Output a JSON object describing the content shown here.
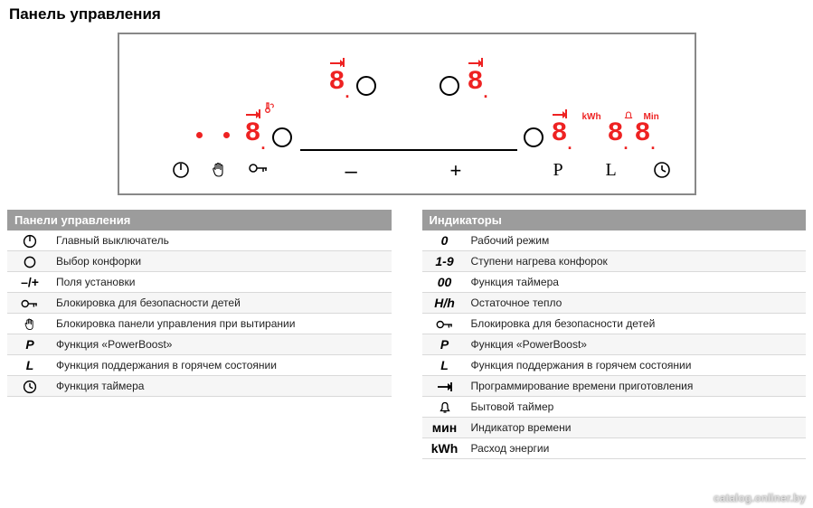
{
  "title": "Панель управления",
  "panel": {
    "seg_char": "8",
    "label_kwh": "kWh",
    "label_min": "Min",
    "colors": {
      "seg": "#e22222",
      "border": "#888888",
      "line": "#000000"
    },
    "icons": {
      "power": "⏻",
      "minus": "–",
      "plus": "+",
      "p": "P",
      "l": "L"
    }
  },
  "left_table": {
    "header": "Панели управления",
    "rows": [
      {
        "sym_type": "svg_power",
        "desc": "Главный выключатель"
      },
      {
        "sym_type": "svg_circle",
        "desc": "Выбор конфорки"
      },
      {
        "sym_text": "–/+",
        "plain": true,
        "desc": "Поля установки"
      },
      {
        "sym_type": "svg_key",
        "desc": "Блокировка для безопасности детей"
      },
      {
        "sym_type": "svg_hand",
        "desc": "Блокировка панели управления при вытирании"
      },
      {
        "sym_text": "P",
        "desc": "Функция «PowerBoost»"
      },
      {
        "sym_text": "L",
        "desc": "Функция поддержания в горячем состоянии"
      },
      {
        "sym_type": "svg_clock",
        "desc": "Функция таймера"
      }
    ]
  },
  "right_table": {
    "header": "Индикаторы",
    "rows": [
      {
        "sym_text": "0",
        "desc": "Рабочий режим"
      },
      {
        "sym_text": "1-9",
        "desc": "Ступени нагрева конфорок"
      },
      {
        "sym_text": "00",
        "desc": "Функция таймера"
      },
      {
        "sym_text": "H/h",
        "desc": "Остаточное тепло"
      },
      {
        "sym_type": "svg_key",
        "desc": "Блокировка для безопасности детей"
      },
      {
        "sym_text": "P",
        "desc": "Функция «PowerBoost»"
      },
      {
        "sym_text": "L",
        "desc": "Функция поддержания в горячем состоянии"
      },
      {
        "sym_type": "svg_cookarrow",
        "desc": "Программирование времени приготовления"
      },
      {
        "sym_type": "svg_bell",
        "desc": "Бытовой таймер"
      },
      {
        "sym_text": "мин",
        "plain": true,
        "desc": "Индикатор времени"
      },
      {
        "sym_text": "kWh",
        "plain": true,
        "desc": "Расход энергии"
      }
    ]
  },
  "watermark": "catalog.onliner.by"
}
